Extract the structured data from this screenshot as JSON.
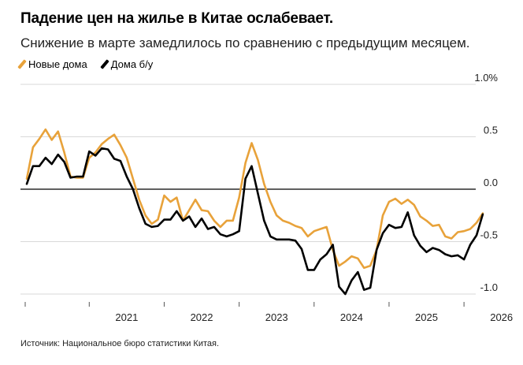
{
  "title": "Падение цен на жилье в Китае ослабевает.",
  "subtitle": "Снижение в марте замедлилось по сравнению с предыдущим месяцем.",
  "source": "Источник: Национальное бюро статистики Китая.",
  "colors": {
    "new": "#e8a23a",
    "used": "#000000",
    "grid": "#d9d9d9",
    "zero": "#000000"
  },
  "chart_data": {
    "type": "line",
    "title": "Падение цен на жилье в Китае ослабевает.",
    "subtitle": "Снижение в марте замедлилось по сравнению с предыдущим месяцем.",
    "y_unit": "%",
    "ylim": [
      -1.0,
      1.0
    ],
    "y_ticks": [
      1.0,
      0.5,
      0.0,
      -0.5,
      -1.0
    ],
    "y_tick_labels": [
      "1.0%",
      "0.5",
      "0.0",
      "-0.5",
      "-1.0"
    ],
    "x_tick_labels": [
      "2021",
      "2022",
      "2023",
      "2024",
      "2025",
      "2026"
    ],
    "grid": true,
    "legend_position": "top-left",
    "x_start": "2020-03",
    "series": [
      {
        "name": "Новые дома",
        "key": "new",
        "values": [
          0.1,
          0.4,
          0.48,
          0.57,
          0.47,
          0.55,
          0.35,
          0.12,
          0.11,
          0.11,
          0.3,
          0.35,
          0.43,
          0.48,
          0.52,
          0.42,
          0.3,
          0.1,
          -0.1,
          -0.25,
          -0.33,
          -0.29,
          -0.06,
          -0.12,
          -0.08,
          -0.3,
          -0.2,
          -0.1,
          -0.2,
          -0.21,
          -0.3,
          -0.36,
          -0.3,
          -0.3,
          -0.08,
          0.25,
          0.44,
          0.28,
          0.05,
          -0.12,
          -0.25,
          -0.3,
          -0.32,
          -0.35,
          -0.37,
          -0.45,
          -0.4,
          -0.38,
          -0.36,
          -0.58,
          -0.73,
          -0.69,
          -0.64,
          -0.66,
          -0.75,
          -0.73,
          -0.58,
          -0.25,
          -0.12,
          -0.09,
          -0.14,
          -0.1,
          -0.15,
          -0.26,
          -0.3,
          -0.35,
          -0.34,
          -0.45,
          -0.47,
          -0.41,
          -0.4,
          -0.38,
          -0.32,
          -0.23
        ]
      },
      {
        "name": "Дома б/у",
        "key": "used",
        "values": [
          0.05,
          0.22,
          0.22,
          0.3,
          0.24,
          0.33,
          0.26,
          0.11,
          0.12,
          0.12,
          0.36,
          0.32,
          0.39,
          0.38,
          0.29,
          0.27,
          0.12,
          0.0,
          -0.18,
          -0.33,
          -0.36,
          -0.35,
          -0.29,
          -0.29,
          -0.21,
          -0.3,
          -0.26,
          -0.36,
          -0.28,
          -0.38,
          -0.36,
          -0.43,
          -0.45,
          -0.43,
          -0.4,
          0.1,
          0.22,
          -0.04,
          -0.3,
          -0.45,
          -0.48,
          -0.48,
          -0.48,
          -0.49,
          -0.57,
          -0.77,
          -0.77,
          -0.67,
          -0.62,
          -0.53,
          -0.93,
          -1.0,
          -0.87,
          -0.79,
          -0.96,
          -0.94,
          -0.58,
          -0.42,
          -0.34,
          -0.37,
          -0.36,
          -0.22,
          -0.44,
          -0.54,
          -0.6,
          -0.56,
          -0.58,
          -0.62,
          -0.64,
          -0.63,
          -0.67,
          -0.53,
          -0.44,
          -0.24
        ]
      }
    ]
  }
}
